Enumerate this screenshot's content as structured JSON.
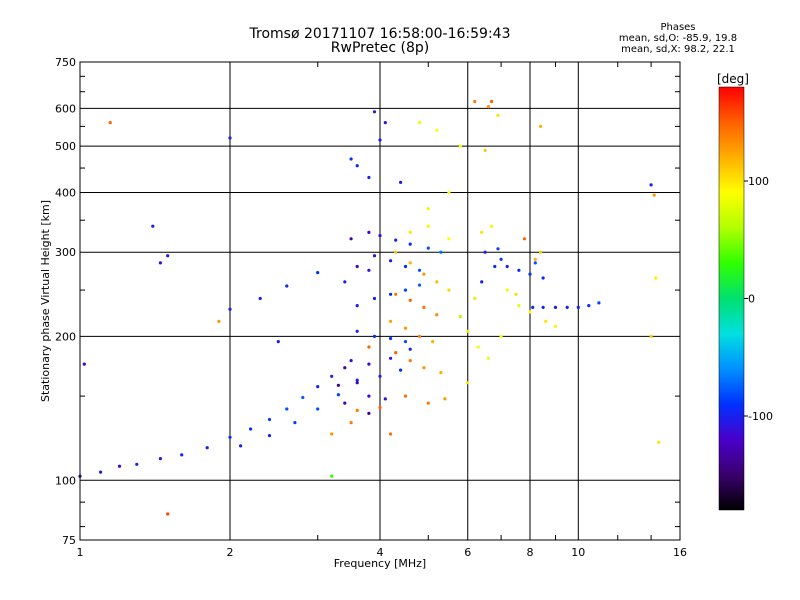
{
  "title": {
    "line1": "Tromsø 20171107 16:58:00-16:59:43",
    "line2": "RwPretec (8p)"
  },
  "stats": {
    "heading": "Phases",
    "o_mode": "mean, sd,O: -85.9, 19.8",
    "x_mode": "mean, sd,X:  98.2, 22.1"
  },
  "colorbar": {
    "unit": "[deg]",
    "colors": [
      "#000000",
      "#3a006e",
      "#4a00cc",
      "#0030ff",
      "#0090ff",
      "#00e0e0",
      "#00e070",
      "#30ff00",
      "#b0ff00",
      "#ffff00",
      "#ffb000",
      "#ff6000",
      "#ff0000"
    ],
    "tick_values": [
      100,
      0,
      -100
    ],
    "tick_labels": [
      "100",
      "0",
      "-100"
    ],
    "range": [
      -180,
      180
    ]
  },
  "chart_data": {
    "type": "scatter",
    "title": "Tromsø 20171107 16:58:00-16:59:43",
    "subtitle": "RwPretec (8p)",
    "xlabel": "Frequency [MHz]",
    "ylabel": "Stationary phase Virtual Height [km]",
    "xscale": "log",
    "yscale": "log",
    "xlim": [
      1,
      16
    ],
    "ylim": [
      75,
      750
    ],
    "x_ticks": [
      1,
      2,
      4,
      6,
      8,
      10,
      16
    ],
    "y_ticks": [
      75,
      100,
      200,
      300,
      400,
      500,
      600,
      750
    ],
    "grid": true,
    "legend": "colorbar-right",
    "color_quantity": "phase [deg]",
    "series": [
      {
        "values": [
          [
            1.0,
            102,
            -110
          ],
          [
            1.1,
            104,
            -105
          ],
          [
            1.2,
            107,
            -115
          ],
          [
            1.3,
            108,
            -100
          ],
          [
            1.45,
            111,
            -110
          ],
          [
            1.6,
            113,
            -95
          ],
          [
            1.8,
            117,
            -100
          ],
          [
            2.0,
            123,
            -95
          ],
          [
            2.2,
            128,
            -90
          ],
          [
            2.4,
            134,
            -85
          ],
          [
            2.6,
            141,
            -80
          ],
          [
            2.8,
            149,
            -75
          ],
          [
            3.0,
            157,
            -95
          ],
          [
            3.2,
            165,
            -100
          ],
          [
            3.5,
            178,
            -110
          ],
          [
            2.1,
            118,
            -100
          ],
          [
            2.4,
            124,
            -95
          ],
          [
            2.7,
            132,
            -85
          ],
          [
            3.0,
            141,
            -80
          ],
          [
            3.3,
            151,
            -85
          ],
          [
            3.6,
            162,
            -95
          ],
          [
            3.2,
            125,
            130
          ],
          [
            3.5,
            132,
            140
          ],
          [
            3.8,
            138,
            -140
          ],
          [
            2.0,
            228,
            -100
          ],
          [
            2.3,
            240,
            -100
          ],
          [
            2.6,
            255,
            -95
          ],
          [
            3.0,
            272,
            -90
          ],
          [
            3.4,
            260,
            -100
          ],
          [
            3.8,
            275,
            -110
          ],
          [
            3.5,
            470,
            -90
          ],
          [
            3.6,
            455,
            -95
          ],
          [
            3.9,
            590,
            -110
          ],
          [
            4.1,
            560,
            -105
          ],
          [
            4.0,
            515,
            -100
          ],
          [
            3.8,
            430,
            -100
          ],
          [
            3.5,
            320,
            -130
          ],
          [
            3.8,
            330,
            -120
          ],
          [
            4.0,
            325,
            -110
          ],
          [
            4.3,
            318,
            -100
          ],
          [
            4.6,
            312,
            -90
          ],
          [
            5.0,
            306,
            -80
          ],
          [
            5.3,
            300,
            -70
          ],
          [
            3.6,
            280,
            -120
          ],
          [
            3.9,
            295,
            -110
          ],
          [
            4.2,
            288,
            -100
          ],
          [
            4.5,
            280,
            -90
          ],
          [
            4.8,
            275,
            -80
          ],
          [
            3.6,
            232,
            -100
          ],
          [
            3.9,
            240,
            -95
          ],
          [
            4.2,
            245,
            -90
          ],
          [
            4.5,
            250,
            -85
          ],
          [
            4.8,
            256,
            -75
          ],
          [
            3.6,
            205,
            -100
          ],
          [
            3.9,
            200,
            -95
          ],
          [
            4.2,
            198,
            -90
          ],
          [
            4.5,
            195,
            -80
          ],
          [
            3.4,
            172,
            -130
          ],
          [
            3.8,
            175,
            -120
          ],
          [
            4.2,
            180,
            -110
          ],
          [
            4.6,
            188,
            -100
          ],
          [
            3.3,
            158,
            -140
          ],
          [
            3.6,
            160,
            -130
          ],
          [
            4.0,
            165,
            -100
          ],
          [
            4.4,
            170,
            -90
          ],
          [
            3.4,
            145,
            -130
          ],
          [
            3.8,
            150,
            -120
          ],
          [
            4.1,
            148,
            -110
          ],
          [
            4.3,
            300,
            110
          ],
          [
            4.6,
            285,
            120
          ],
          [
            4.9,
            270,
            130
          ],
          [
            5.2,
            260,
            115
          ],
          [
            5.5,
            250,
            105
          ],
          [
            4.3,
            245,
            140
          ],
          [
            4.6,
            238,
            150
          ],
          [
            4.9,
            230,
            145
          ],
          [
            5.2,
            222,
            135
          ],
          [
            4.2,
            215,
            125
          ],
          [
            4.5,
            208,
            130
          ],
          [
            4.8,
            200,
            140
          ],
          [
            5.1,
            195,
            120
          ],
          [
            4.3,
            185,
            150
          ],
          [
            4.6,
            178,
            140
          ],
          [
            4.9,
            172,
            130
          ],
          [
            5.3,
            168,
            120
          ],
          [
            4.0,
            142,
            150
          ],
          [
            4.5,
            150,
            145
          ],
          [
            5.0,
            145,
            140
          ],
          [
            5.4,
            148,
            130
          ],
          [
            4.6,
            330,
            100
          ],
          [
            5.0,
            340,
            95
          ],
          [
            5.5,
            320,
            90
          ],
          [
            5.0,
            370,
            95
          ],
          [
            5.5,
            400,
            90
          ],
          [
            5.8,
            220,
            60
          ],
          [
            6.0,
            205,
            75
          ],
          [
            6.3,
            190,
            85
          ],
          [
            6.6,
            180,
            80
          ],
          [
            7.0,
            200,
            90
          ],
          [
            6.2,
            240,
            70
          ],
          [
            6.0,
            160,
            100
          ],
          [
            4.8,
            560,
            95
          ],
          [
            5.2,
            540,
            90
          ],
          [
            5.8,
            500,
            85
          ],
          [
            6.5,
            490,
            110
          ],
          [
            6.2,
            620,
            140
          ],
          [
            6.6,
            605,
            130
          ],
          [
            6.9,
            580,
            100
          ],
          [
            6.5,
            300,
            -100
          ],
          [
            6.8,
            280,
            -95
          ],
          [
            7.0,
            290,
            -90
          ],
          [
            6.4,
            260,
            -100
          ],
          [
            6.9,
            305,
            -85
          ],
          [
            7.2,
            280,
            -100
          ],
          [
            7.6,
            275,
            -95
          ],
          [
            8.0,
            270,
            -90
          ],
          [
            8.2,
            285,
            -80
          ],
          [
            8.5,
            265,
            -95
          ],
          [
            8.1,
            230,
            -100
          ],
          [
            8.5,
            230,
            -95
          ],
          [
            9.0,
            230,
            -100
          ],
          [
            9.5,
            230,
            -95
          ],
          [
            10.0,
            230,
            -100
          ],
          [
            10.5,
            232,
            -90
          ],
          [
            11.0,
            235,
            -85
          ],
          [
            7.6,
            232,
            80
          ],
          [
            8.0,
            225,
            90
          ],
          [
            8.6,
            215,
            100
          ],
          [
            9.0,
            210,
            95
          ],
          [
            8.2,
            290,
            120
          ],
          [
            8.4,
            300,
            110
          ],
          [
            1.15,
            560,
            150
          ],
          [
            1.45,
            285,
            -115
          ],
          [
            1.5,
            295,
            -110
          ],
          [
            1.4,
            340,
            -100
          ],
          [
            1.02,
            175,
            -120
          ],
          [
            2.0,
            520,
            -100
          ],
          [
            1.9,
            215,
            130
          ],
          [
            2.5,
            195,
            -100
          ],
          [
            3.2,
            102,
            30
          ],
          [
            1.5,
            85,
            160
          ],
          [
            3.6,
            140,
            140
          ],
          [
            3.8,
            190,
            150
          ],
          [
            4.2,
            125,
            145
          ],
          [
            4.4,
            420,
            -100
          ],
          [
            6.4,
            330,
            100
          ],
          [
            6.7,
            340,
            95
          ],
          [
            7.2,
            250,
            95
          ],
          [
            7.5,
            245,
            105
          ],
          [
            14.0,
            415,
            -100
          ],
          [
            14.2,
            395,
            130
          ],
          [
            14.5,
            120,
            100
          ],
          [
            14.0,
            200,
            110
          ],
          [
            14.3,
            265,
            95
          ],
          [
            8.4,
            550,
            120
          ],
          [
            7.8,
            320,
            150
          ],
          [
            6.7,
            620,
            150
          ]
        ]
      }
    ]
  }
}
